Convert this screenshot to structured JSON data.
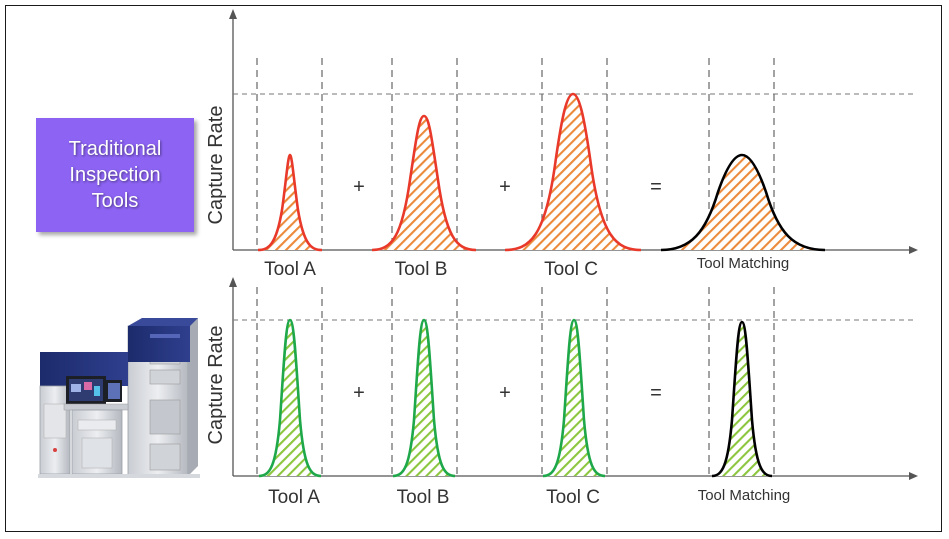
{
  "panel_top": {
    "side_label": "Traditional\nInspection\nTools",
    "ylabel": "Capture Rate",
    "tools": [
      "Tool A",
      "Tool B",
      "Tool C"
    ],
    "result_label": "Tool Matching",
    "operators": [
      "+",
      "+",
      "="
    ]
  },
  "panel_bottom": {
    "ylabel": "Capture Rate",
    "tools": [
      "Tool A",
      "Tool B",
      "Tool C"
    ],
    "result_label": "Tool Matching",
    "operators": [
      "+",
      "+",
      "="
    ]
  },
  "colors": {
    "traditional_curve": "#e8392a",
    "traditional_fill": "#ec8a3c",
    "matched_curve": "#1fa84a",
    "matched_fill": "#8cc63e",
    "result_curve": "#000000",
    "panel_label_bg": "#8c63f2"
  },
  "icons": {
    "machine": "inspection-machine-icon"
  }
}
